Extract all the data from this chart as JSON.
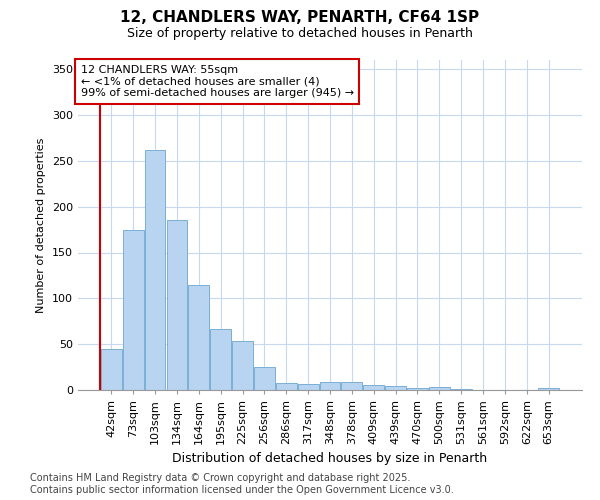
{
  "title": "12, CHANDLERS WAY, PENARTH, CF64 1SP",
  "subtitle": "Size of property relative to detached houses in Penarth",
  "xlabel": "Distribution of detached houses by size in Penarth",
  "ylabel": "Number of detached properties",
  "categories": [
    "42sqm",
    "73sqm",
    "103sqm",
    "134sqm",
    "164sqm",
    "195sqm",
    "225sqm",
    "256sqm",
    "286sqm",
    "317sqm",
    "348sqm",
    "378sqm",
    "409sqm",
    "439sqm",
    "470sqm",
    "500sqm",
    "531sqm",
    "561sqm",
    "592sqm",
    "622sqm",
    "653sqm"
  ],
  "values": [
    45,
    175,
    262,
    185,
    115,
    67,
    53,
    25,
    8,
    7,
    9,
    9,
    5,
    4,
    2,
    3,
    1,
    0,
    0,
    0,
    2
  ],
  "bar_color": "#b8d4f0",
  "bar_edge_color": "#7aafd4",
  "annotation_line_color": "#cc0000",
  "annotation_box_edge": "#cc0000",
  "annotation_text_line1": "12 CHANDLERS WAY: 55sqm",
  "annotation_text_line2": "← <1% of detached houses are smaller (4)",
  "annotation_text_line3": "99% of semi-detached houses are larger (945) →",
  "ylim": [
    0,
    360
  ],
  "yticks": [
    0,
    50,
    100,
    150,
    200,
    250,
    300,
    350
  ],
  "background_color": "#ffffff",
  "grid_color": "#c8d8f0",
  "footer_line1": "Contains HM Land Registry data © Crown copyright and database right 2025.",
  "footer_line2": "Contains public sector information licensed under the Open Government Licence v3.0.",
  "title_fontsize": 11,
  "subtitle_fontsize": 9,
  "xlabel_fontsize": 9,
  "ylabel_fontsize": 8,
  "tick_fontsize": 8,
  "annotation_fontsize": 8,
  "footer_fontsize": 7
}
